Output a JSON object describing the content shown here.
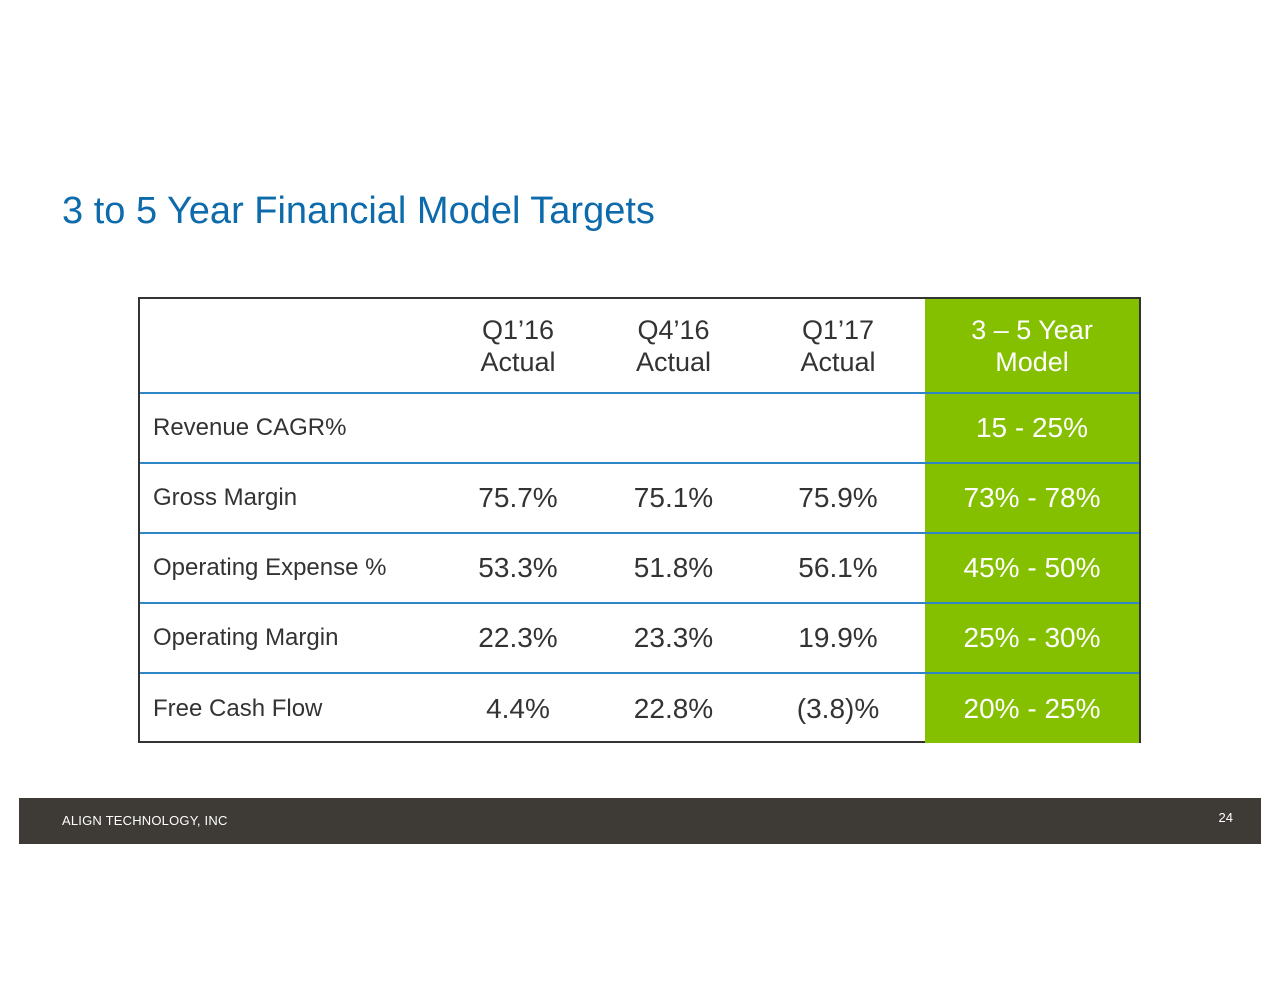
{
  "title": "3 to 5 Year Financial Model Targets",
  "table": {
    "headers": [
      {
        "line1": "",
        "line2": ""
      },
      {
        "line1": "Q1’16",
        "line2": "Actual"
      },
      {
        "line1": "Q4’16",
        "line2": "Actual"
      },
      {
        "line1": "Q1’17",
        "line2": "Actual"
      },
      {
        "line1": "3 – 5 Year",
        "line2": "Model"
      }
    ],
    "rows": [
      {
        "label": "Revenue CAGR%",
        "q1_16": "",
        "q4_16": "",
        "q1_17": "",
        "model": "15 - 25%"
      },
      {
        "label": "Gross Margin",
        "q1_16": "75.7%",
        "q4_16": "75.1%",
        "q1_17": "75.9%",
        "model": "73% - 78%"
      },
      {
        "label": "Operating Expense %",
        "q1_16": "53.3%",
        "q4_16": "51.8%",
        "q1_17": "56.1%",
        "model": "45% - 50%"
      },
      {
        "label": "Operating Margin",
        "q1_16": "22.3%",
        "q4_16": "23.3%",
        "q1_17": "19.9%",
        "model": "25% - 30%"
      },
      {
        "label": "Free Cash Flow",
        "q1_16": "4.4%",
        "q4_16": "22.8%",
        "q1_17": "(3.8)%",
        "model": "20% - 25%"
      }
    ]
  },
  "footer": {
    "company": "ALIGN TECHNOLOGY, INC",
    "page_number": "24"
  },
  "colors": {
    "title": "#0e6bab",
    "model_column": "#84c000",
    "row_divider": "#2f86c6",
    "footer_bar": "#3e3a35"
  }
}
